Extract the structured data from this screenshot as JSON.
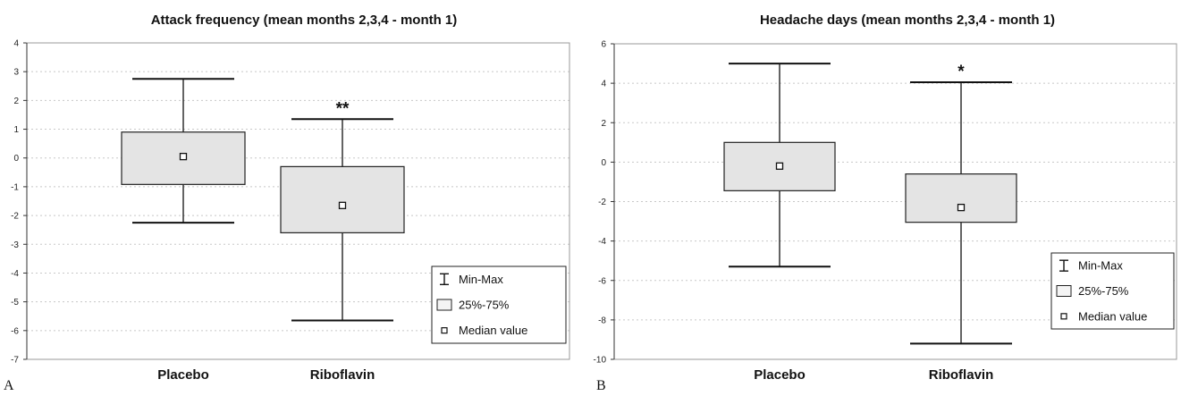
{
  "chart_data": [
    {
      "type": "boxplot",
      "panel_label": "A",
      "title": "Attack frequency (mean months 2,3,4 - month 1)",
      "categories": [
        "Placebo",
        "Riboflavin"
      ],
      "boxes": [
        {
          "category": "Placebo",
          "min": -2.25,
          "q1": -0.92,
          "median": 0.05,
          "q3": 0.9,
          "max": 2.75,
          "significance": ""
        },
        {
          "category": "Riboflavin",
          "min": -5.65,
          "q1": -2.6,
          "median": -1.65,
          "q3": -0.3,
          "max": 1.35,
          "significance": "**"
        }
      ],
      "ylim": [
        -7,
        4
      ],
      "yticks": [
        4,
        3,
        2,
        1,
        0,
        -1,
        -2,
        -3,
        -4,
        -5,
        -6,
        -7
      ],
      "grid": true,
      "legend": {
        "placement": "bottom-right",
        "entries": [
          "Min-Max",
          "25%-75%",
          "Median value"
        ]
      }
    },
    {
      "type": "boxplot",
      "panel_label": "B",
      "title": "Headache days (mean months 2,3,4 - month 1)",
      "categories": [
        "Placebo",
        "Riboflavin"
      ],
      "boxes": [
        {
          "category": "Placebo",
          "min": -5.3,
          "q1": -1.45,
          "median": -0.2,
          "q3": 1.0,
          "max": 5.0,
          "significance": ""
        },
        {
          "category": "Riboflavin",
          "min": -9.2,
          "q1": -3.05,
          "median": -2.3,
          "q3": -0.6,
          "max": 4.05,
          "significance": "*"
        }
      ],
      "ylim": [
        -10,
        6
      ],
      "yticks": [
        6,
        4,
        2,
        0,
        -2,
        -4,
        -6,
        -8,
        -10
      ],
      "grid": true,
      "legend": {
        "placement": "bottom-right",
        "entries": [
          "Min-Max",
          "25%-75%",
          "Median value"
        ]
      }
    }
  ]
}
